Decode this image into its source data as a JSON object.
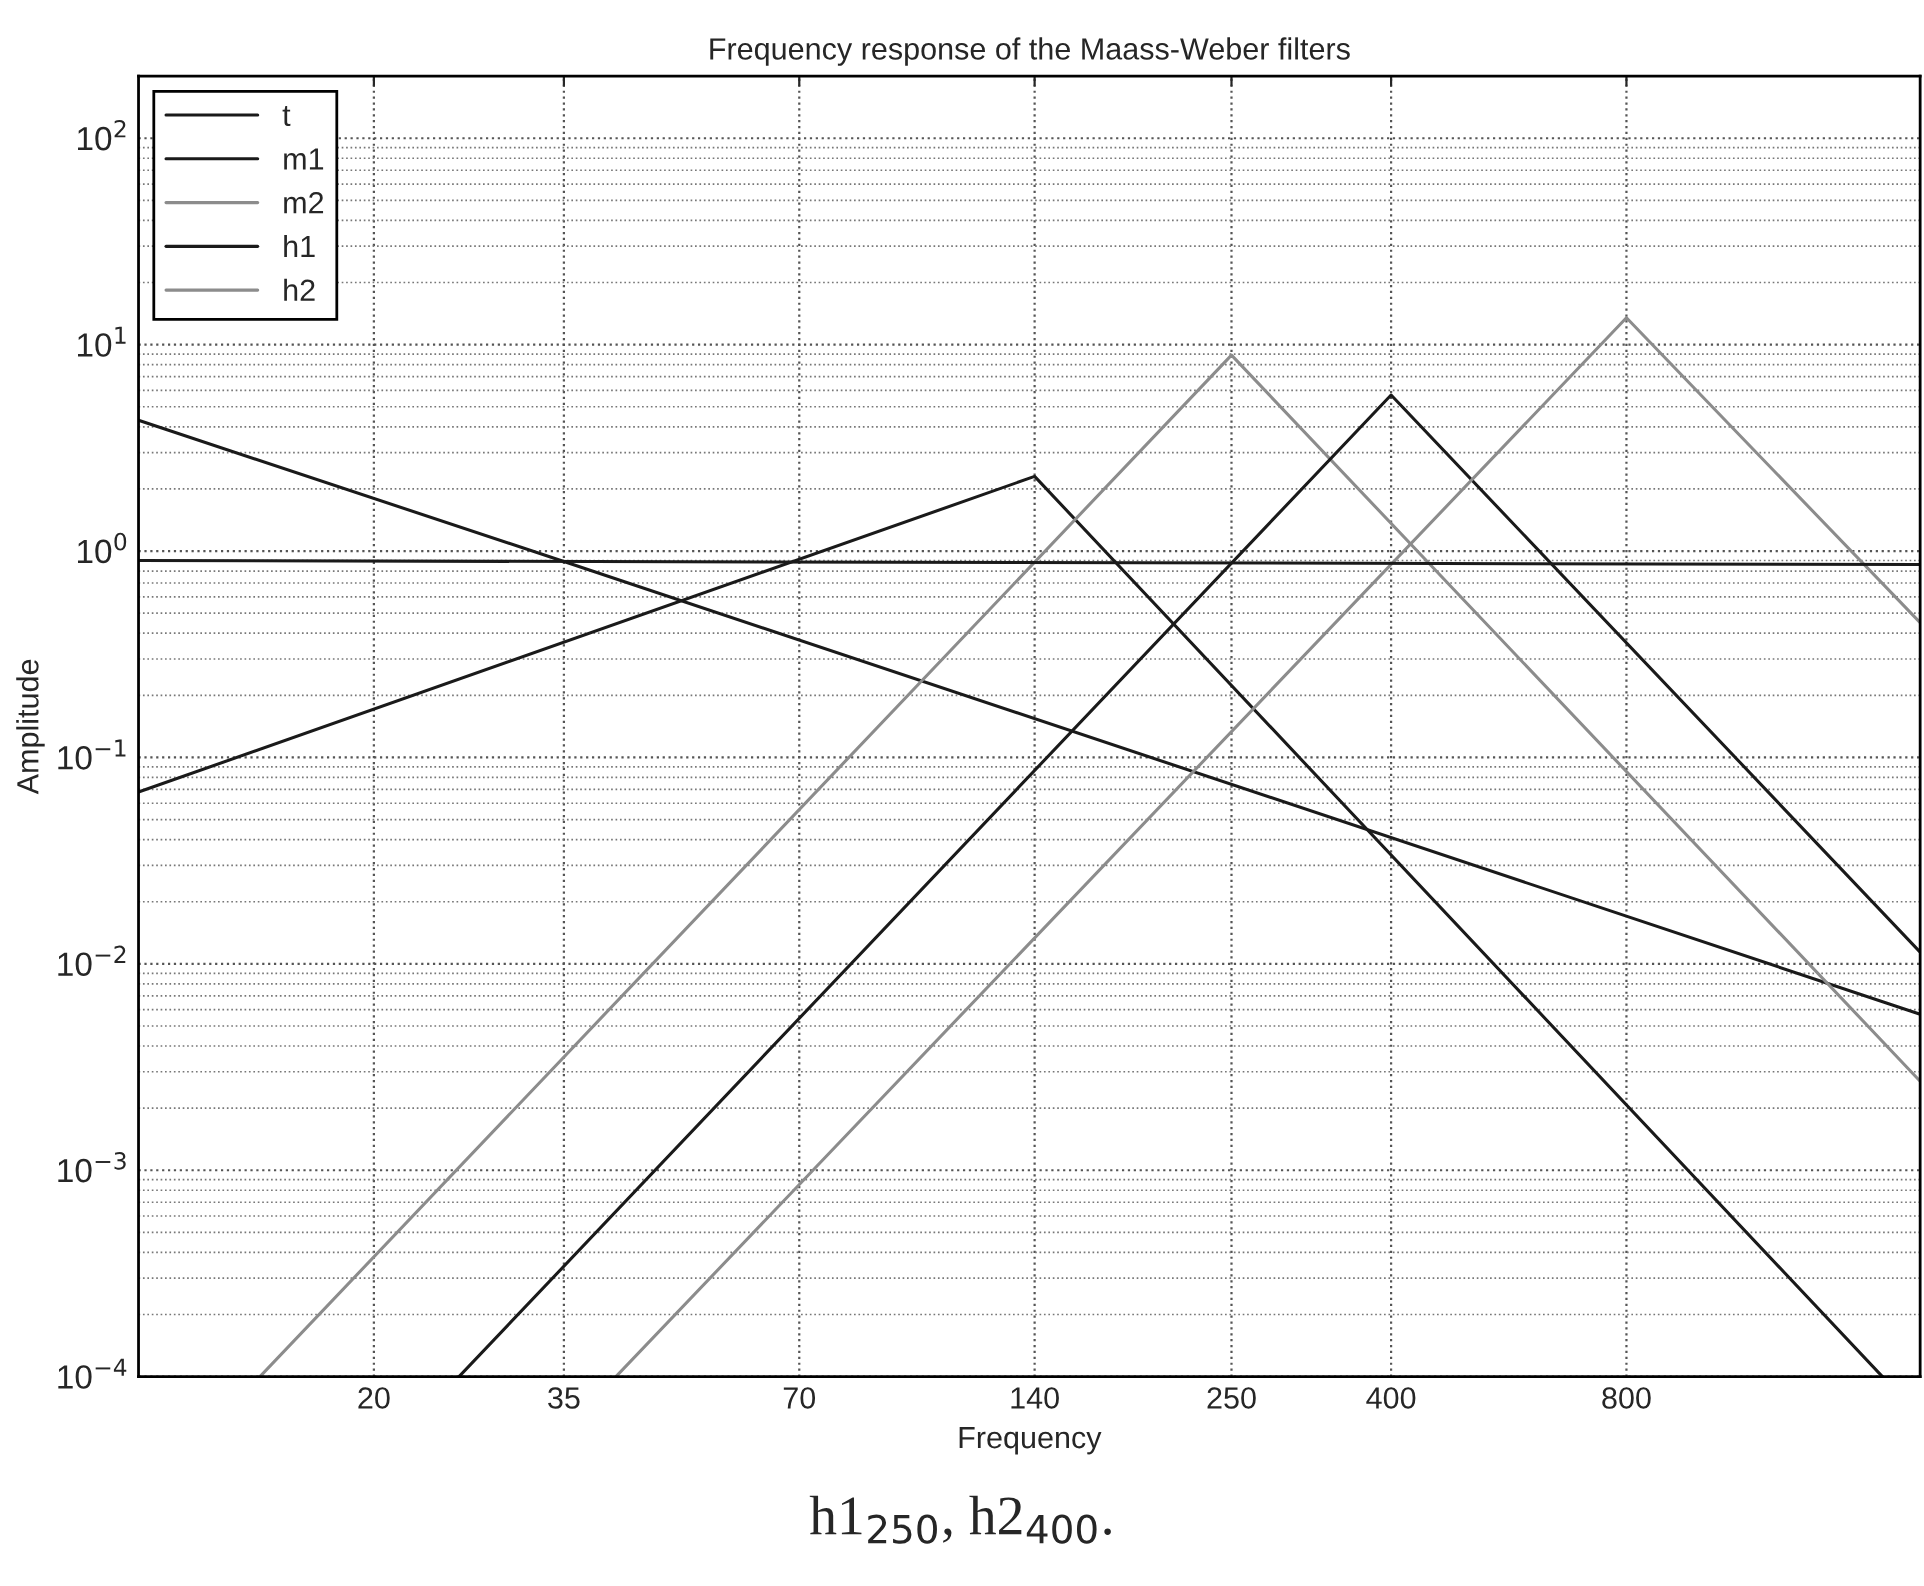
{
  "chart_data": {
    "type": "line",
    "title": "Frequency response of the Maass-Weber filters",
    "xlabel": "Frequency",
    "ylabel": "Amplitude",
    "annotations": [
      "h1$_{250}$, h2$_{400}$."
    ],
    "series": [
      {
        "name": "t",
        "color": "#1a1a1a",
        "x": [
          10,
          35,
          1900
        ],
        "values": [
          4.3,
          0.89,
          0.0057
        ]
      },
      {
        "name": "m1",
        "color": "#1a1a1a",
        "x": [
          10,
          140,
          1700
        ],
        "values": [
          0.068,
          2.3,
          0.0001
        ]
      },
      {
        "name": "m2",
        "color": "#8c8c8c",
        "x": [
          14.3,
          250,
          1900
        ],
        "values": [
          0.0001,
          8.9,
          0.0027
        ]
      },
      {
        "name": "h1",
        "color": "#1a1a1a",
        "x": [
          25.7,
          400,
          1900
        ],
        "values": [
          0.0001,
          5.7,
          0.0114
        ]
      },
      {
        "name": "h2",
        "color": "#8c8c8c",
        "x": [
          40.8,
          800,
          1900
        ],
        "values": [
          0.0001,
          13.5,
          0.45
        ]
      },
      {
        "color": "#1a1a1a",
        "x": [
          10,
          1900
        ],
        "values": [
          0.9,
          0.86
        ]
      }
    ],
    "log": "xy",
    "xlim": [
      10,
      1900
    ],
    "ylim": [
      0.0001,
      200
    ],
    "xticks": [
      20,
      35,
      70,
      140,
      250,
      400,
      800
    ],
    "yticks": [
      {
        "value": 0.0001,
        "label": "10$^{−4}$"
      },
      {
        "value": 0.001,
        "label": "10$^{−3}$"
      },
      {
        "value": 0.01,
        "label": "10$^{−2}$"
      },
      {
        "value": 0.1,
        "label": "10$^{−1}$"
      },
      {
        "value": 1,
        "label": "10$^{0}$"
      },
      {
        "value": 10,
        "label": "10$^{1}$"
      },
      {
        "value": 100,
        "label": "10$^{2}$"
      }
    ],
    "grid": true,
    "legend": "top left",
    "marker": "none",
    "line_style": "solid"
  }
}
